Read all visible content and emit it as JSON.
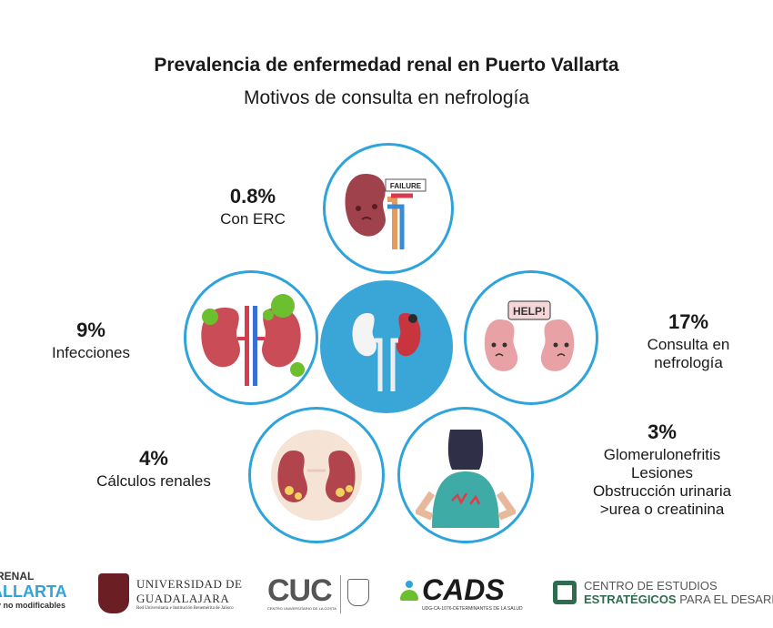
{
  "header": {
    "title": "Prevalencia de enfermedad renal en Puerto Vallarta",
    "subtitle": "Motivos de consulta en nefrología"
  },
  "stats": {
    "erc": {
      "pct": "0.8%",
      "label": "Con ERC"
    },
    "infecciones": {
      "pct": "9%",
      "label": "Infecciones"
    },
    "consulta": {
      "pct": "17%",
      "line1": "Consulta en",
      "line2": "nefrología"
    },
    "calculos": {
      "pct": "4%",
      "label": "Cálculos renales"
    },
    "otros": {
      "pct": "3%",
      "line1": "Glomerulonefritis",
      "line2": "Lesiones",
      "line3": "Obstrucción urinaria",
      "line4": ">urea o creatinina"
    }
  },
  "illustrations": {
    "failure_tag": "FAILURE",
    "help_sign": "HELP!"
  },
  "footer": {
    "logo1_line1": "RENAL",
    "logo1_line2": "ALLARTA",
    "logo1_line3": "y no modificables",
    "udg_line1": "UNIVERSIDAD DE",
    "udg_line2": "GUADALAJARA",
    "udg_line3": "Red Universitaria e Institución Benemérita de Jalisco",
    "cuc": "CUC",
    "cuc_small": "CENTRO UNIVERSITARIO DE LA COSTA",
    "cads": "CADS",
    "cads_small": "UDG-CA-1076-DETERMINANTES DE LA SALUD",
    "cee_line1": "CENTRO DE ESTUDIOS",
    "cee_line2a": "ESTRATÉGICOS",
    "cee_line2b": " PARA EL DESARR"
  },
  "colors": {
    "accent": "#2ea3dc",
    "center": "#3aa6d8",
    "kidney": "#b2444e"
  }
}
